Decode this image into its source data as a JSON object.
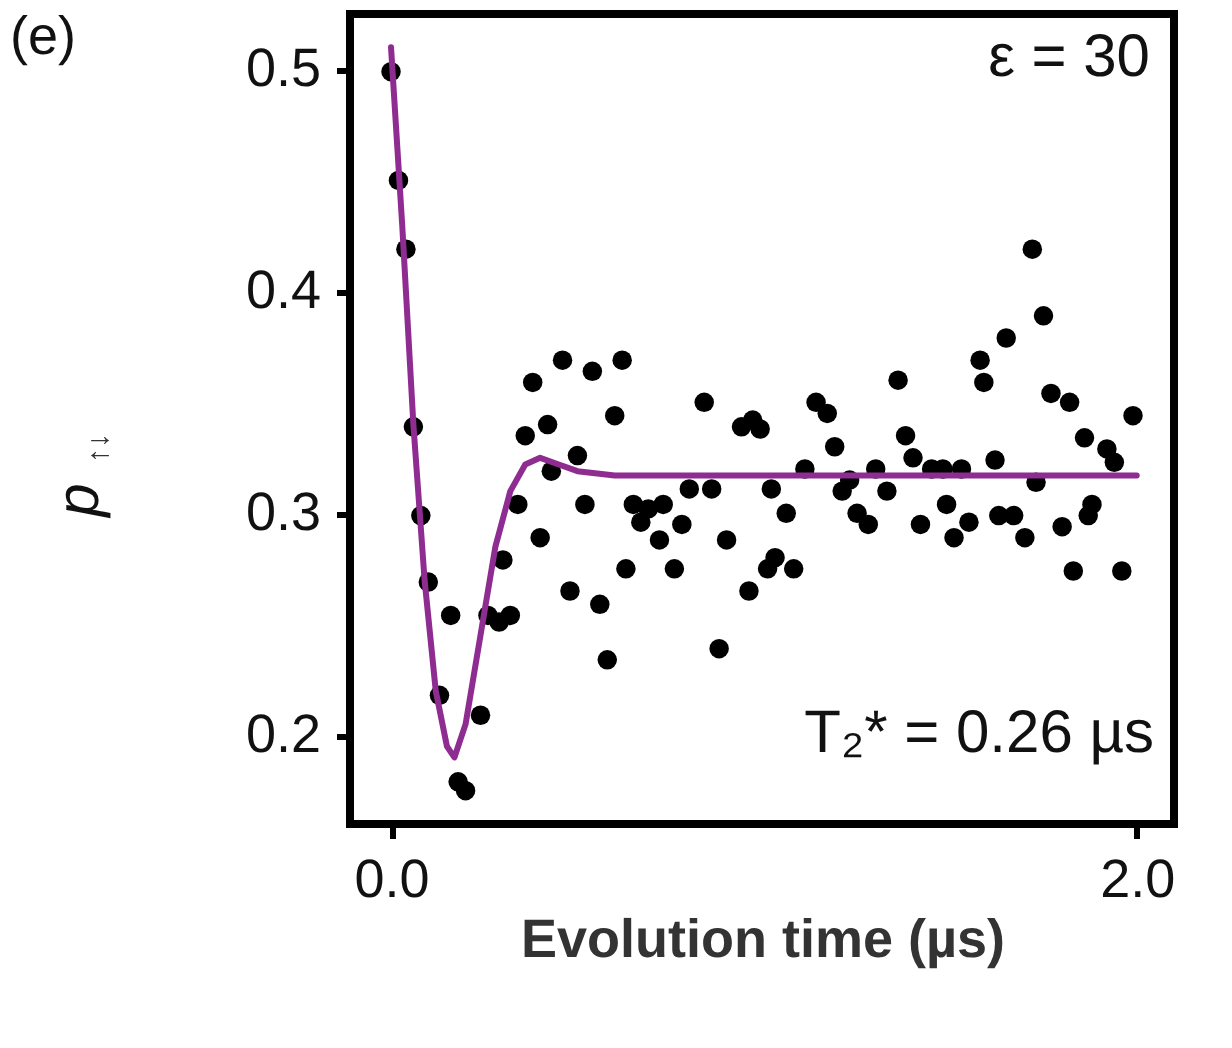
{
  "chart_data": {
    "type": "scatter",
    "xlabel": "Evolution time (µs)",
    "ylabel": "p$_{↑↓}$",
    "annotations": [
      "(e)",
      "ε = 30",
      "T₂* = 0.26 µs"
    ],
    "xlim": [
      -0.11,
      2.1
    ],
    "xticks": [
      {
        "value": 0,
        "label": "0.0"
      },
      {
        "value": 2,
        "label": "2.0"
      }
    ],
    "ylim": [
      0.16,
      0.525
    ],
    "yticks": [
      0.2,
      0.3,
      0.4,
      0.5
    ],
    "grid": false,
    "series": [
      {
        "type": "scatter",
        "color": "#000000",
        "marker": "circle",
        "x": [
          0,
          0.02,
          0.04,
          0.06,
          0.08,
          0.1,
          0.16,
          0.13,
          0.24,
          0.18,
          0.2,
          0.26,
          0.29,
          0.32,
          0.3,
          0.34,
          0.36,
          0.38,
          0.42,
          0.4,
          0.43,
          0.46,
          0.48,
          0.5,
          0.52,
          0.54,
          0.56,
          0.58,
          0.6,
          0.62,
          0.63,
          0.65,
          0.67,
          0.69,
          0.72,
          0.73,
          0.76,
          0.78,
          0.8,
          0.84,
          0.86,
          0.88,
          0.9,
          0.94,
          0.96,
          0.97,
          0.99,
          1.01,
          1.02,
          1.03,
          1.06,
          1.08,
          1.11,
          1.14,
          1.17,
          1.19,
          1.21,
          1.23,
          1.25,
          1.28,
          1.3,
          1.33,
          1.36,
          1.38,
          1.4,
          1.42,
          1.45,
          1.48,
          1.49,
          1.51,
          1.53,
          1.55,
          1.58,
          1.59,
          1.62,
          1.63,
          1.65,
          1.67,
          1.7,
          1.72,
          1.73,
          1.75,
          1.77,
          1.8,
          1.82,
          1.83,
          1.86,
          1.87,
          1.88,
          1.92,
          1.94,
          1.96,
          1.99
        ],
        "values": [
          0.499,
          0.45,
          0.419,
          0.339,
          0.299,
          0.269,
          0.254,
          0.218,
          0.209,
          0.179,
          0.175,
          0.254,
          0.251,
          0.254,
          0.279,
          0.304,
          0.335,
          0.359,
          0.34,
          0.289,
          0.319,
          0.369,
          0.265,
          0.326,
          0.304,
          0.364,
          0.259,
          0.234,
          0.344,
          0.369,
          0.275,
          0.304,
          0.296,
          0.302,
          0.288,
          0.304,
          0.275,
          0.295,
          0.311,
          0.35,
          0.311,
          0.239,
          0.288,
          0.339,
          0.265,
          0.342,
          0.338,
          0.275,
          0.311,
          0.28,
          0.3,
          0.275,
          0.32,
          0.35,
          0.345,
          0.33,
          0.31,
          0.315,
          0.3,
          0.295,
          0.32,
          0.31,
          0.36,
          0.335,
          0.325,
          0.295,
          0.32,
          0.32,
          0.304,
          0.289,
          0.32,
          0.296,
          0.369,
          0.359,
          0.324,
          0.299,
          0.379,
          0.299,
          0.289,
          0.419,
          0.314,
          0.389,
          0.354,
          0.294,
          0.35,
          0.274,
          0.334,
          0.299,
          0.304,
          0.329,
          0.323,
          0.274,
          0.344
        ]
      },
      {
        "type": "line",
        "color": "#8e2c91",
        "marker": "none",
        "line_style": "solid",
        "x": [
          0,
          0.03,
          0.06,
          0.09,
          0.12,
          0.15,
          0.17,
          0.2,
          0.24,
          0.28,
          0.32,
          0.36,
          0.4,
          0.45,
          0.5,
          0.6,
          0.8,
          2.0
        ],
        "values": [
          0.51,
          0.43,
          0.34,
          0.27,
          0.22,
          0.195,
          0.19,
          0.205,
          0.245,
          0.285,
          0.31,
          0.322,
          0.325,
          0.322,
          0.319,
          0.317,
          0.317,
          0.317
        ]
      }
    ]
  }
}
